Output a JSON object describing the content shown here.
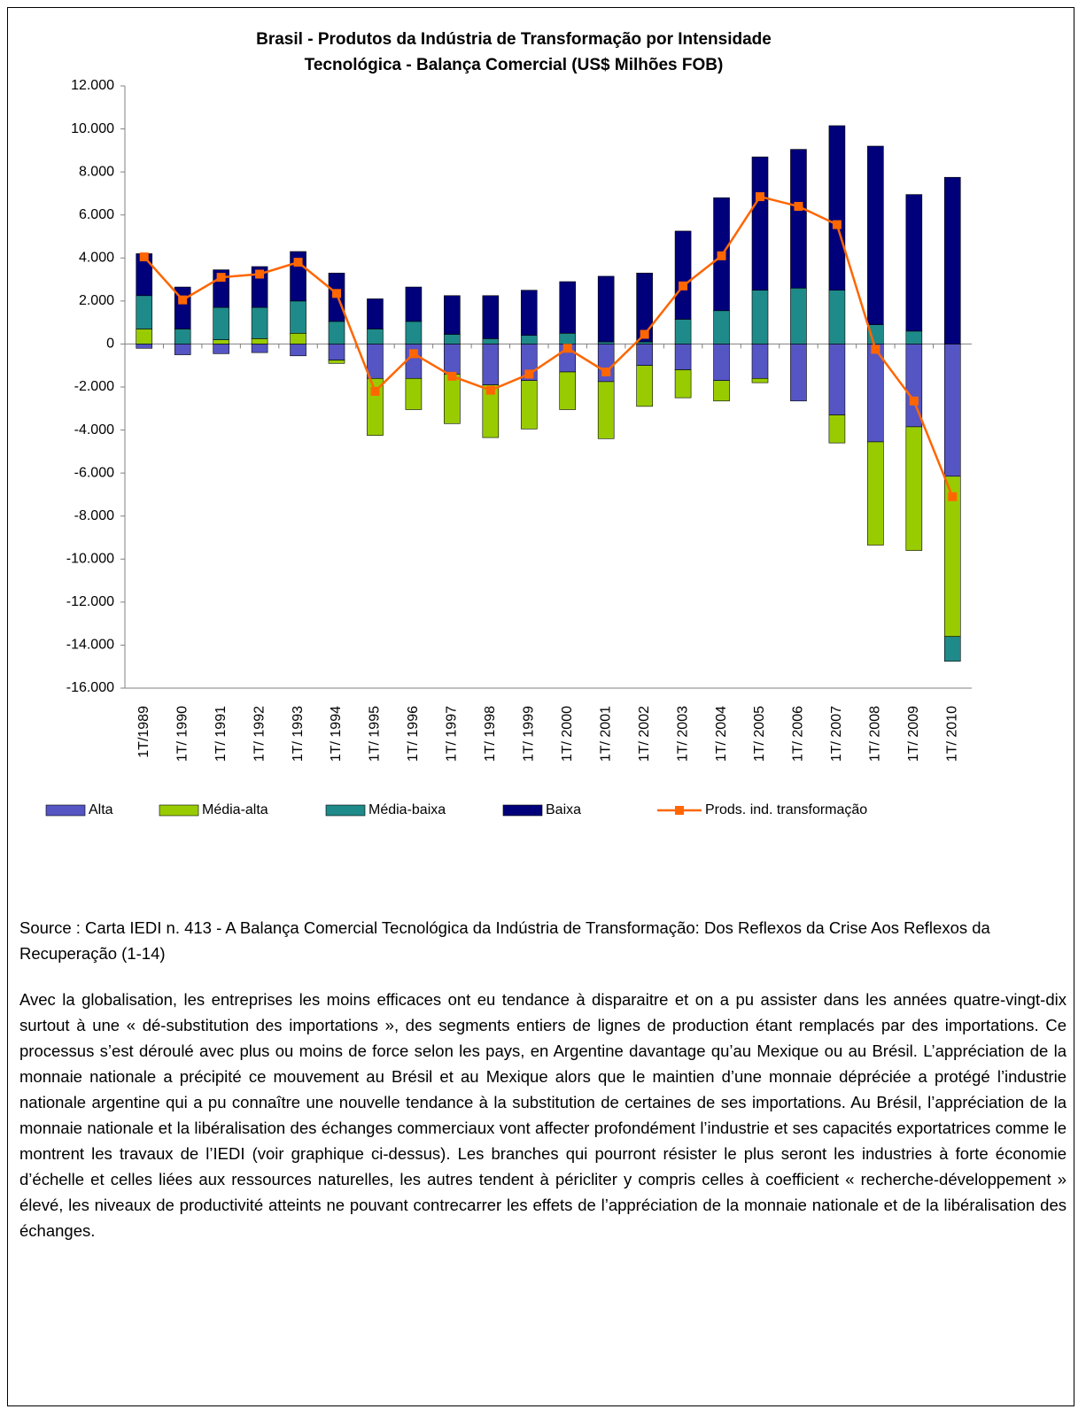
{
  "chart_data": {
    "type": "bar",
    "title": "Brasil - Produtos da Indústria de Transformação por Intensidade",
    "subtitle": "Tecnológica - Balança Comercial (US$ Milhões FOB)",
    "categories": [
      "1T/1989",
      "1T/ 1990",
      "1T/ 1991",
      "1T/ 1992",
      "1T/ 1993",
      "1T/ 1994",
      "1T/ 1995",
      "1T/ 1996",
      "1T/ 1997",
      "1T/ 1998",
      "1T/ 1999",
      "1T/ 2000",
      "1T/ 2001",
      "1T/ 2002",
      "1T/ 2003",
      "1T/ 2004",
      "1T/ 2005",
      "1T/ 2006",
      "1T/ 2007",
      "1T/ 2008",
      "1T/ 2009",
      "1T/ 2010"
    ],
    "series": [
      {
        "name": "Alta",
        "color": "#5555c4",
        "values": [
          -200,
          -500,
          -450,
          -400,
          -550,
          -750,
          -1600,
          -1600,
          -1400,
          -1900,
          -1700,
          -1300,
          -1750,
          -1000,
          -1200,
          -1700,
          -1600,
          -2650,
          -3300,
          -4550,
          -3850,
          -6150
        ]
      },
      {
        "name": "Média-alta",
        "color": "#99cc00",
        "values": [
          700,
          0,
          200,
          250,
          500,
          -150,
          -2650,
          -1450,
          -2300,
          -2450,
          -2250,
          -1750,
          -2650,
          -1900,
          -1300,
          -950,
          -200,
          0,
          -1300,
          -4800,
          -5750,
          -7450
        ]
      },
      {
        "name": "Média-baixa",
        "color": "#1f8a8a",
        "values": [
          1550,
          700,
          1500,
          1450,
          1500,
          1050,
          700,
          1050,
          450,
          250,
          400,
          500,
          100,
          100,
          1150,
          1550,
          2500,
          2600,
          2500,
          900,
          600,
          -1150
        ]
      },
      {
        "name": "Baixa",
        "color": "#00007a",
        "values": [
          1950,
          1950,
          1750,
          1900,
          2300,
          2250,
          1400,
          1600,
          1800,
          2000,
          2100,
          2400,
          3050,
          3200,
          4100,
          5250,
          6200,
          6450,
          7650,
          8300,
          6350,
          7750
        ]
      },
      {
        "name": "Prods. ind. transformação",
        "type": "line",
        "color": "#ff6600",
        "values": [
          4050,
          2050,
          3100,
          3250,
          3800,
          2350,
          -2200,
          -450,
          -1500,
          -2150,
          -1400,
          -200,
          -1300,
          450,
          2700,
          4100,
          6850,
          6400,
          5550,
          -250,
          -2650,
          -7100
        ]
      }
    ],
    "ylim": [
      -16000,
      12000
    ],
    "yticks": [
      {
        "value": -16000,
        "label": "-16.000"
      },
      {
        "value": -14000,
        "label": "-14.000"
      },
      {
        "value": -12000,
        "label": "-12.000"
      },
      {
        "value": -10000,
        "label": "-10.000"
      },
      {
        "value": -8000,
        "label": "-8.000"
      },
      {
        "value": -6000,
        "label": "-6.000"
      },
      {
        "value": -4000,
        "label": "-4.000"
      },
      {
        "value": -2000,
        "label": "-2.000"
      },
      0,
      {
        "value": 2000,
        "label": "2.000"
      },
      {
        "value": 4000,
        "label": "4.000"
      },
      {
        "value": 6000,
        "label": "6.000"
      },
      {
        "value": 8000,
        "label": "8.000"
      },
      {
        "value": 10000,
        "label": "10.000"
      },
      {
        "value": 12000,
        "label": "12.000"
      }
    ],
    "grid": false,
    "legend": "bottom"
  },
  "source": "Source : Carta IEDI n. 413 - A Balança Comercial Tecnológica da Indústria de Transformação: Dos Reflexos da Crise Aos Reflexos da Recuperação (1-14)",
  "paragraph": "Avec la globalisation, les entreprises les moins efficaces ont eu tendance à disparaitre et on a pu assister dans les années quatre-vingt-dix surtout à une « dé-substitution des importations », des segments entiers de lignes de production étant remplacés par des importations. Ce processus s’est déroulé avec plus ou moins de force selon les pays, en Argentine davantage qu’au Mexique ou au Brésil. L’appréciation de la monnaie nationale a précipité ce mouvement au Brésil et au Mexique alors que le maintien d’une monnaie dépréciée a protégé l’industrie nationale argentine qui a pu connaître une nouvelle tendance à la substitution de certaines de ses importations. Au Brésil, l’appréciation de la monnaie nationale et la libéralisation des échanges commerciaux vont affecter profondément l’industrie et ses capacités exportatrices comme le montrent les travaux de l’IEDI (voir graphique ci-dessus). Les branches qui pourront résister le plus seront les industries à forte économie d’échelle et celles liées aux ressources naturelles, les autres tendent à péricliter y compris celles à coefficient « recherche-développement » élevé, les niveaux de productivité atteints ne pouvant contrecarrer les effets de l’appréciation de la monnaie nationale et de la libéralisation des échanges."
}
